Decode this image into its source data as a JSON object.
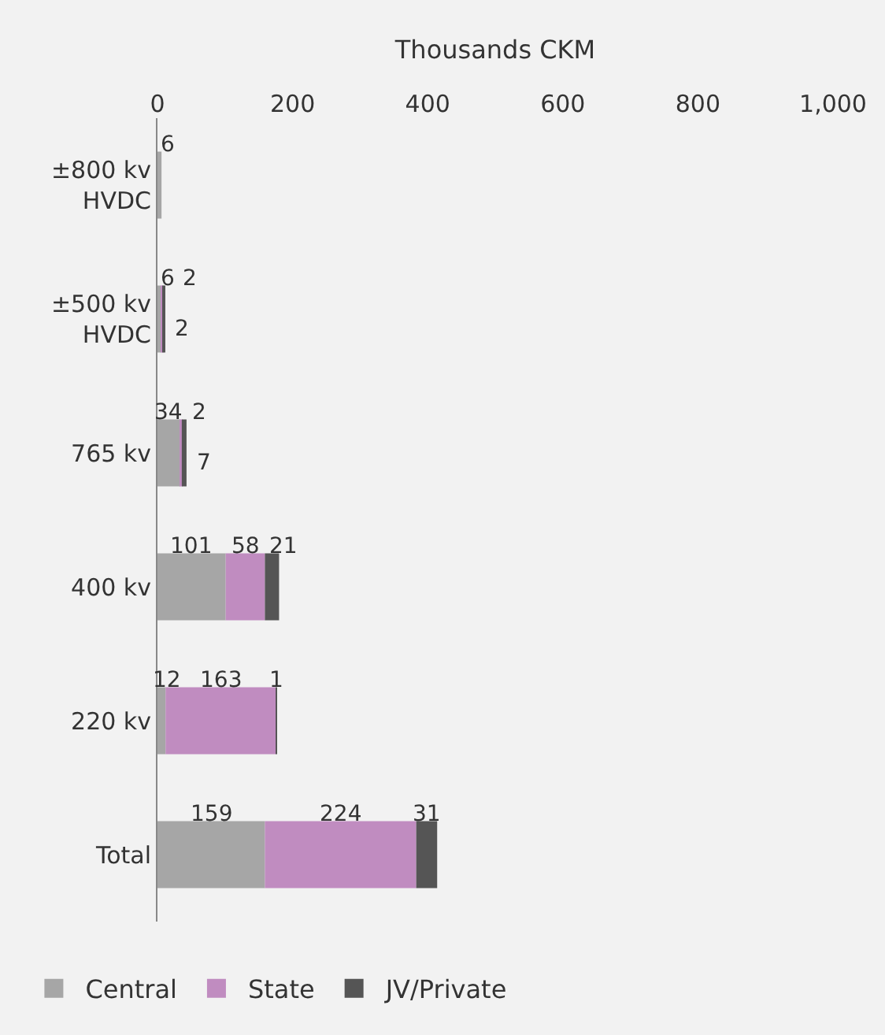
{
  "chart_data": {
    "type": "bar",
    "orientation": "horizontal",
    "stacked": true,
    "xlabel": "Thousands CKM",
    "categories": [
      "±800 kv HVDC",
      "±500 kv HVDC",
      "765 kv",
      "400 kv",
      "220 kv",
      "Total"
    ],
    "series": [
      {
        "name": "Central",
        "color": "#a6a6a6",
        "values": [
          6,
          6,
          34,
          101,
          12,
          159
        ]
      },
      {
        "name": "State",
        "color": "#c08cc0",
        "values": [
          null,
          2,
          2,
          58,
          163,
          224
        ]
      },
      {
        "name": "JV/Private",
        "color": "#555555",
        "values": [
          null,
          2,
          7,
          21,
          1,
          31
        ]
      }
    ],
    "xlim": [
      0,
      1000
    ],
    "xticks": [
      0,
      200,
      400,
      600,
      800,
      {
        "value": 1000,
        "label": "1,000"
      }
    ],
    "data_labels": true,
    "grid": false,
    "legend": "bottom left"
  }
}
